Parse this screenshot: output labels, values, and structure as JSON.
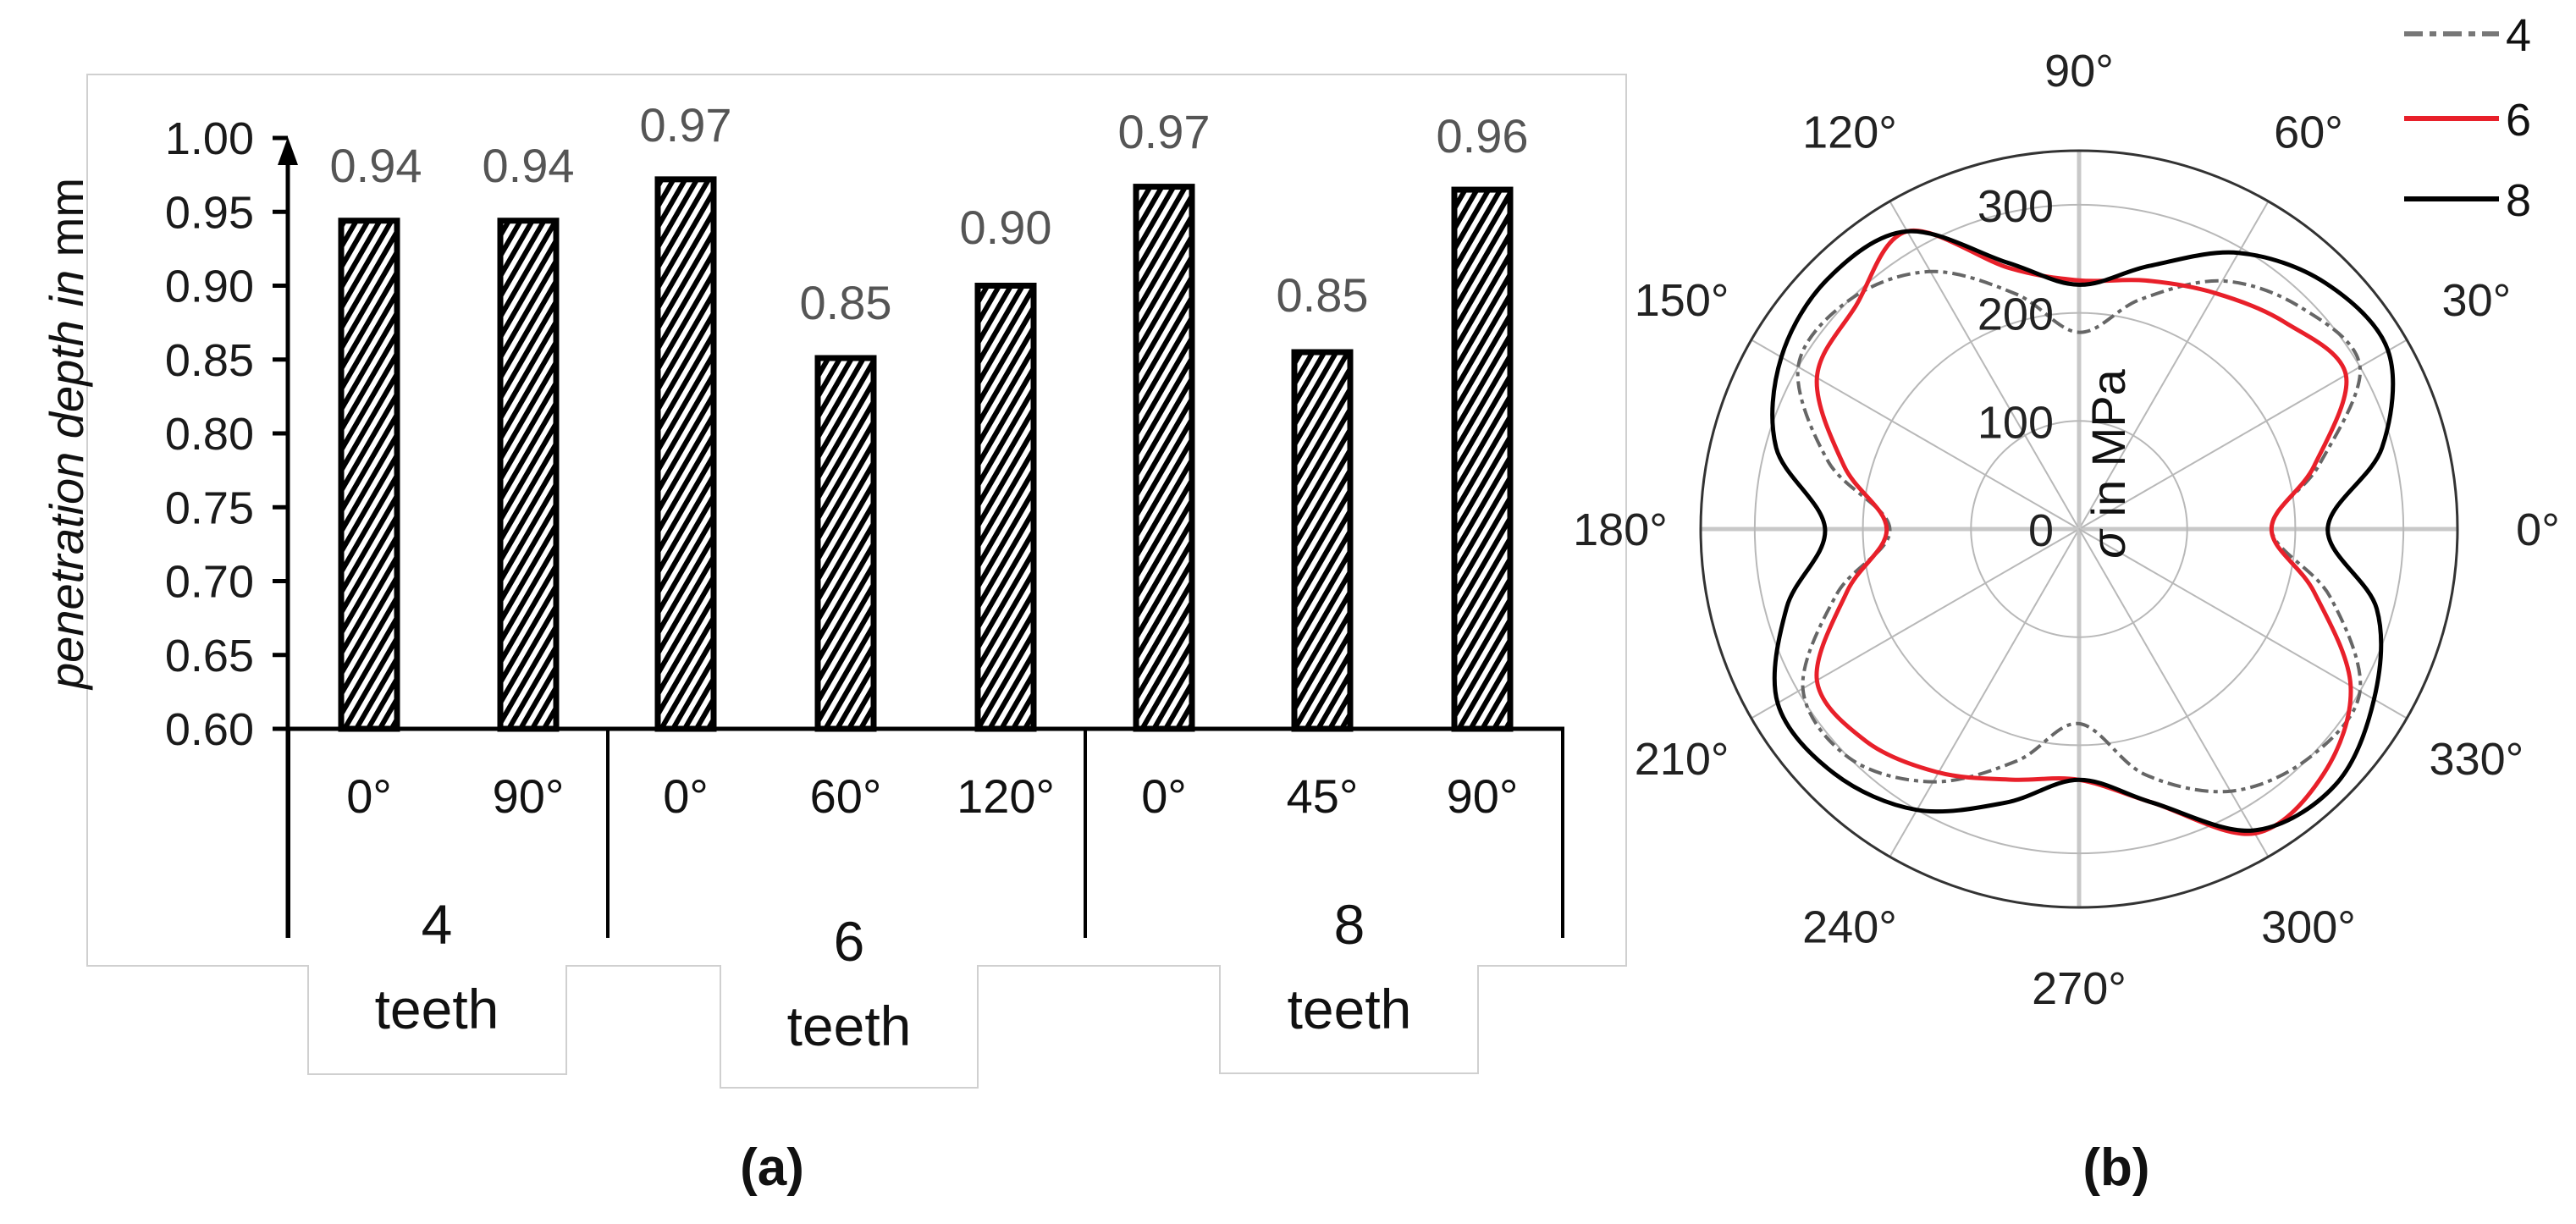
{
  "figure": {
    "caption_a": "(a)",
    "caption_b": "(b)"
  },
  "chart_data": [
    {
      "type": "bar",
      "panel": "(a)",
      "title": "",
      "ylabel_parts": [
        "penetration depth ",
        "in",
        " mm"
      ],
      "ylabel": "penetration depth in mm",
      "ylim": [
        0.6,
        1.0
      ],
      "yticks": [
        "0.60",
        "0.65",
        "0.70",
        "0.75",
        "0.80",
        "0.85",
        "0.90",
        "0.95",
        "1.00"
      ],
      "grid": false,
      "groups": [
        {
          "label_num": "4",
          "label_word": "teeth",
          "categories": [
            "0°",
            "90°"
          ],
          "values": [
            0.944,
            0.944
          ],
          "labels": [
            "0.94",
            "0.94"
          ]
        },
        {
          "label_num": "6",
          "label_word": "teeth",
          "categories": [
            "0°",
            "60°",
            "120°"
          ],
          "values": [
            0.972,
            0.851,
            0.9
          ],
          "labels": [
            "0.97",
            "0.85",
            "0.90"
          ]
        },
        {
          "label_num": "8",
          "label_word": "teeth",
          "categories": [
            "0°",
            "45°",
            "90°"
          ],
          "values": [
            0.967,
            0.855,
            0.965
          ],
          "labels": [
            "0.97",
            "0.85",
            "0.96"
          ]
        }
      ],
      "categories": [
        "4 teeth 0°",
        "4 teeth 90°",
        "6 teeth 0°",
        "6 teeth 60°",
        "6 teeth 120°",
        "8 teeth 0°",
        "8 teeth 45°",
        "8 teeth 90°"
      ],
      "values": [
        0.94,
        0.94,
        0.97,
        0.85,
        0.9,
        0.97,
        0.85,
        0.96
      ],
      "bar_fill": "diagonal-hatch black/white"
    },
    {
      "type": "polar-line",
      "panel": "(b)",
      "radial_label_parts": [
        "σ",
        " in MPa"
      ],
      "radial_label": "σ in MPa",
      "rlim": [
        0,
        350
      ],
      "rticks": [
        "0",
        "100",
        "200",
        "300"
      ],
      "angle_ticks": [
        "0°",
        "30°",
        "60°",
        "90°",
        "120°",
        "150°",
        "180°",
        "210°",
        "240°",
        "270°",
        "300°",
        "330°"
      ],
      "theta_deg": [
        0,
        15,
        30,
        45,
        60,
        75,
        90,
        105,
        120,
        135,
        150,
        165,
        180,
        195,
        210,
        225,
        240,
        255,
        270,
        285,
        300,
        315,
        330,
        345
      ],
      "legend_position": "top-right",
      "series": [
        {
          "name": "4",
          "color": "#666666",
          "style": "dash-dot",
          "values": [
            178,
            230,
            300,
            290,
            265,
            220,
            182,
            225,
            275,
            300,
            300,
            240,
            175,
            232,
            295,
            300,
            270,
            222,
            180,
            235,
            280,
            300,
            300,
            240
          ]
        },
        {
          "name": "6",
          "color": "#e8202a",
          "style": "solid",
          "values": [
            178,
            225,
            285,
            270,
            252,
            238,
            230,
            250,
            318,
            292,
            280,
            225,
            178,
            222,
            280,
            278,
            260,
            240,
            232,
            262,
            325,
            320,
            290,
            225
          ]
        },
        {
          "name": "8",
          "color": "#000000",
          "style": "solid",
          "values": [
            230,
            290,
            330,
            322,
            295,
            252,
            226,
            255,
            318,
            328,
            318,
            290,
            235,
            280,
            322,
            320,
            300,
            262,
            232,
            262,
            322,
            335,
            315,
            285
          ]
        }
      ]
    }
  ]
}
